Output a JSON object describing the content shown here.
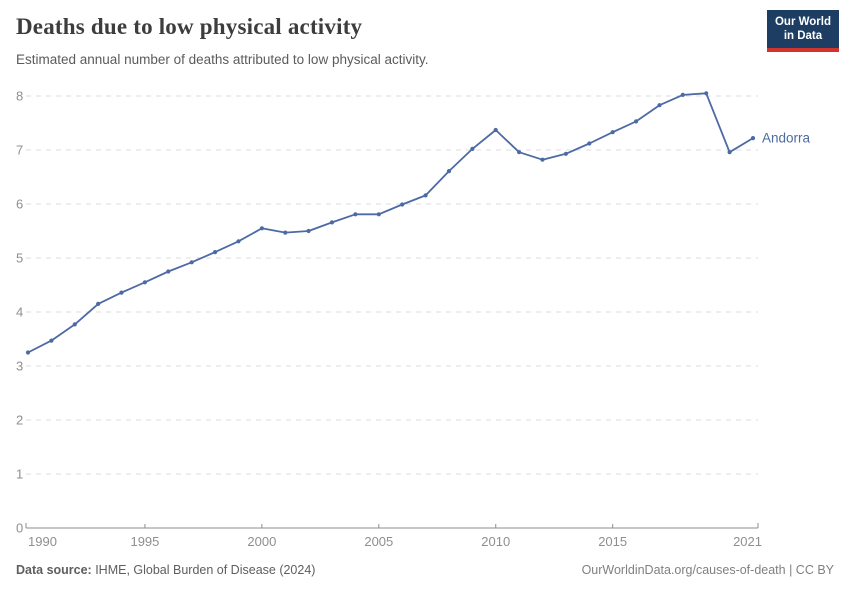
{
  "header": {
    "title": "Deaths due to low physical activity",
    "subtitle": "Estimated annual number of deaths attributed to low physical activity.",
    "logo": {
      "line1": "Our World",
      "line2": "in Data"
    }
  },
  "footer": {
    "source_label": "Data source:",
    "source_text": " IHME, Global Burden of Disease (2024)",
    "link_text": "OurWorldinData.org/causes-of-death | CC BY"
  },
  "colors": {
    "series_line": "#4d6aa5",
    "grid_line": "#dcdcdc",
    "axis_line": "#8c8c8c",
    "axis_label": "#8f8f8f",
    "logo_navy": "#1d3d63",
    "logo_red": "#d0342c"
  },
  "chart_data": {
    "type": "line",
    "title": "Deaths due to low physical activity",
    "subtitle": "Estimated annual number of deaths attributed to low physical activity.",
    "xlabel": "",
    "ylabel": "",
    "ylim": [
      0,
      8
    ],
    "yticks": [
      0,
      1,
      2,
      3,
      4,
      5,
      6,
      7,
      8
    ],
    "xticks": [
      1990,
      1995,
      2000,
      2005,
      2010,
      2015,
      2021
    ],
    "grid": "horizontal-dashed",
    "legend": "line-end-label",
    "x": [
      1990,
      1991,
      1992,
      1993,
      1994,
      1995,
      1996,
      1997,
      1998,
      1999,
      2000,
      2001,
      2002,
      2003,
      2004,
      2005,
      2006,
      2007,
      2008,
      2009,
      2010,
      2011,
      2012,
      2013,
      2014,
      2015,
      2016,
      2017,
      2018,
      2019,
      2020,
      2021
    ],
    "series": [
      {
        "name": "Andorra",
        "values": [
          3.25,
          3.47,
          3.77,
          4.15,
          4.36,
          4.55,
          4.75,
          4.92,
          5.11,
          5.31,
          5.55,
          5.47,
          5.5,
          5.66,
          5.81,
          5.81,
          5.99,
          6.16,
          6.61,
          7.02,
          7.37,
          6.96,
          6.82,
          6.93,
          7.12,
          7.33,
          7.53,
          7.83,
          8.02,
          8.05,
          6.96,
          7.22
        ]
      }
    ]
  }
}
